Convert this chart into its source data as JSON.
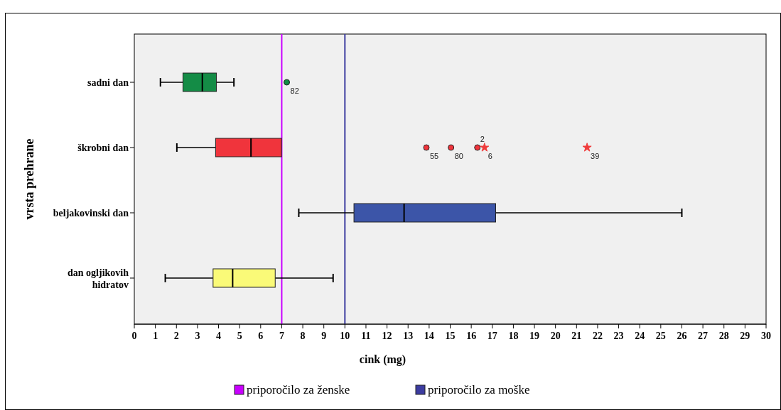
{
  "chart_data": {
    "type": "box",
    "orientation": "horizontal",
    "xlabel": "cink (mg)",
    "ylabel": "vrsta prehrane",
    "categories": [
      "sadni dan",
      "škrobni dan",
      "beljakovinski dan",
      "dan ogljikovih hidratov"
    ],
    "colors": [
      "#148c46",
      "#f0343c",
      "#3c55a8",
      "#fafa78"
    ],
    "boxes": [
      {
        "low": 1.24,
        "q1": 2.31,
        "median": 3.23,
        "q3": 3.9,
        "high": 4.73
      },
      {
        "low": 2.02,
        "q1": 3.86,
        "median": 5.54,
        "q3": 6.99,
        "high": 6.99
      },
      {
        "low": 7.81,
        "q1": 10.43,
        "median": 12.81,
        "q3": 17.16,
        "high": 26.0
      },
      {
        "low": 1.47,
        "q1": 3.74,
        "median": 4.67,
        "q3": 6.69,
        "high": 9.44
      }
    ],
    "series": [
      {
        "type": "scatter",
        "marker": "circle",
        "color": "#148c46",
        "x": [
          "sadni dan"
        ],
        "values": [
          7.24
        ]
      },
      {
        "type": "scatter",
        "marker": "circle",
        "color": "#f0343c",
        "x": [
          "škrobni dan",
          "škrobni dan",
          "škrobni dan"
        ],
        "values": [
          13.87,
          15.04,
          16.29
        ]
      },
      {
        "type": "scatter",
        "marker": "star",
        "color": "#f03c3c",
        "x": [
          "škrobni dan",
          "škrobni dan"
        ],
        "values": [
          16.63,
          21.5
        ]
      }
    ],
    "xlim": [
      0,
      30
    ],
    "xticks": [
      0,
      1,
      2,
      3,
      4,
      5,
      6,
      7,
      8,
      9,
      10,
      11,
      12,
      13,
      14,
      15,
      16,
      17,
      18,
      19,
      20,
      21,
      22,
      23,
      24,
      25,
      26,
      27,
      28,
      29,
      30
    ],
    "ref_lines": [
      {
        "axis": "x",
        "value": 7,
        "label": "priporočilo za ženske",
        "color": "#c800ff"
      },
      {
        "axis": "x",
        "value": 10,
        "label": "priporočilo za moške",
        "color": "#3c3ca0"
      }
    ],
    "annotations": [
      {
        "text": "82",
        "x": 7.24,
        "y": "sadni dan"
      },
      {
        "text": "55",
        "x": 13.87,
        "y": "škrobni dan"
      },
      {
        "text": "80",
        "x": 15.04,
        "y": "škrobni dan"
      },
      {
        "text": "2",
        "x": 16.29,
        "y": "škrobni dan"
      },
      {
        "text": "6",
        "x": 16.63,
        "y": "škrobni dan"
      },
      {
        "text": "39",
        "x": 21.5,
        "y": "škrobni dan"
      }
    ],
    "grid": false,
    "legend": "bottom"
  }
}
